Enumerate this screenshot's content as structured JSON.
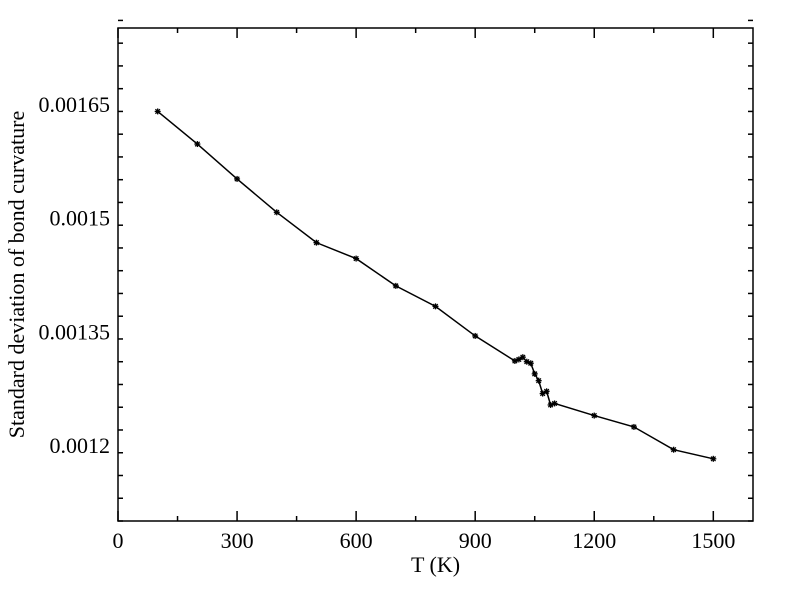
{
  "chart_data": {
    "type": "line",
    "xlabel": "T (K)",
    "ylabel": "Standard deviation of bond curvature",
    "xlim": [
      0,
      1600
    ],
    "ylim": [
      0.0011,
      0.00175
    ],
    "x_ticks": [
      0,
      300,
      600,
      900,
      1200,
      1500
    ],
    "x_tick_labels": [
      "0",
      "300",
      "600",
      "900",
      "1200",
      "1500"
    ],
    "y_ticks": [
      0.0012,
      0.00135,
      0.0015,
      0.00165
    ],
    "y_tick_labels": [
      "0.0012",
      "0.00135",
      "0.0015",
      "0.00165"
    ],
    "grid": false,
    "series": [
      {
        "marker": "star",
        "color": "#000000",
        "x": [
          100,
          200,
          300,
          400,
          500,
          600,
          700,
          800,
          900,
          1000,
          1010,
          1020,
          1030,
          1040,
          1050,
          1060,
          1070,
          1080,
          1090,
          1100,
          1200,
          1300,
          1400,
          1500
        ],
        "y": [
          0.00164,
          0.001597,
          0.001551,
          0.001507,
          0.001467,
          0.001446,
          0.00141,
          0.001383,
          0.001344,
          0.001311,
          0.001313,
          0.001316,
          0.00131,
          0.001308,
          0.001294,
          0.001285,
          0.001268,
          0.001271,
          0.001253,
          0.001255,
          0.001239,
          0.001224,
          0.001194,
          0.001182
        ]
      }
    ]
  }
}
